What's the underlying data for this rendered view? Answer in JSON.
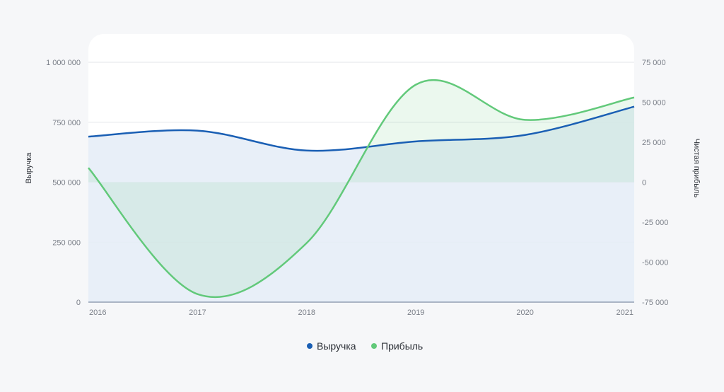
{
  "chart_data": {
    "type": "line",
    "x": [
      "2016",
      "2017",
      "2018",
      "2019",
      "2020",
      "2021"
    ],
    "series": [
      {
        "name": "Выручка",
        "axis": "left",
        "color": "#1a5fb4",
        "fill": "#e6edf7",
        "values": [
          690000,
          715000,
          632000,
          670000,
          697000,
          815000
        ]
      },
      {
        "name": "Прибыль",
        "axis": "right",
        "color": "#62c97a",
        "fill": "#d8ede7",
        "values": [
          9000,
          -70000,
          -38000,
          61000,
          39000,
          53000
        ]
      }
    ],
    "y_left": {
      "label": "Выручка",
      "range": [
        0,
        1000000
      ],
      "ticks": [
        "0",
        "250 000",
        "500 000",
        "750 000",
        "1 000 000"
      ]
    },
    "y_right": {
      "label": "Чистая прибыль",
      "range": [
        -75000,
        75000
      ],
      "ticks": [
        "-75 000",
        "-50 000",
        "-25 000",
        "0",
        "25 000",
        "50 000",
        "75 000"
      ]
    },
    "grid": true,
    "legend": "bottom-center"
  }
}
